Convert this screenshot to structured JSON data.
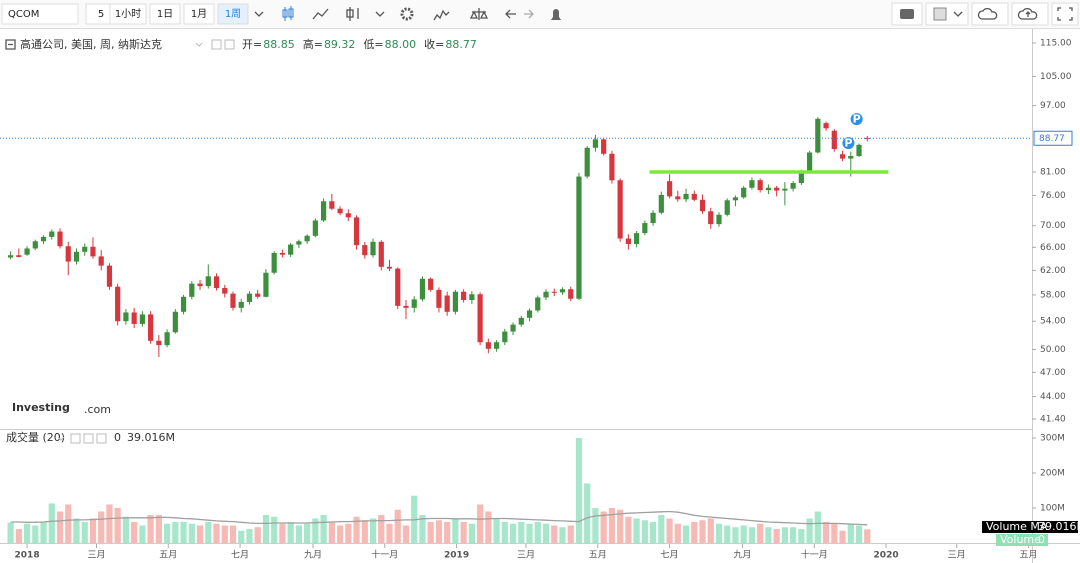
{
  "toolbar": {
    "symbol": "QCOM",
    "intervals": [
      "5",
      "1小时",
      "1日",
      "1月",
      "1周"
    ],
    "active": 4
  },
  "chart_data": {
    "type": "candlestick",
    "header": {
      "name": "高通公司, 美国, 周, 纳斯达克",
      "fields": [
        {
          "label": "开=",
          "value": "88.85"
        },
        {
          "label": "高=",
          "value": "89.32"
        },
        {
          "label": "低=",
          "value": "88.00"
        },
        {
          "label": "收=",
          "value": "88.77"
        }
      ]
    },
    "watermark": [
      "Investing",
      ".com"
    ],
    "log_scale": true,
    "up_color": "#3c8f3c",
    "down_color": "#d6363e",
    "ylim": [
      40.4,
      118.8
    ],
    "yticks": [
      {
        "value": 115,
        "label": "115.00"
      },
      {
        "value": 105,
        "label": "105.00"
      },
      {
        "value": 97,
        "label": "97.00"
      },
      {
        "value": 81,
        "label": "81.00"
      },
      {
        "value": 76,
        "label": "76.00"
      },
      {
        "value": 70,
        "label": "70.00"
      },
      {
        "value": 66,
        "label": "66.00"
      },
      {
        "value": 62,
        "label": "62.00"
      },
      {
        "value": 58,
        "label": "58.00"
      },
      {
        "value": 54,
        "label": "54.00"
      },
      {
        "value": 50,
        "label": "50.00"
      },
      {
        "value": 47,
        "label": "47.00"
      },
      {
        "value": 44,
        "label": "44.00"
      },
      {
        "value": 41.4,
        "label": "41.40"
      }
    ],
    "xlim": [
      "2017-12-09",
      "2020-05-04"
    ],
    "xticks": [
      {
        "value": "2018-01-01",
        "label": "2018"
      },
      {
        "value": "2018-03-01",
        "label": "三月"
      },
      {
        "value": "2018-05-01",
        "label": "五月"
      },
      {
        "value": "2018-07-01",
        "label": "七月"
      },
      {
        "value": "2018-09-01",
        "label": "九月"
      },
      {
        "value": "2018-11-01",
        "label": "十一月"
      },
      {
        "value": "2019-01-01",
        "label": "2019"
      },
      {
        "value": "2019-03-01",
        "label": "三月"
      },
      {
        "value": "2019-05-01",
        "label": "五月"
      },
      {
        "value": "2019-07-01",
        "label": "七月"
      },
      {
        "value": "2019-09-01",
        "label": "九月"
      },
      {
        "value": "2019-11-01",
        "label": "十一月"
      },
      {
        "value": "2020-01-01",
        "label": "2020"
      },
      {
        "value": "2020-03-01",
        "label": "三月"
      },
      {
        "value": "2020-05-01",
        "label": "五月"
      }
    ],
    "x": [
      "2017-12-18",
      "2017-12-25",
      "2018-01-01",
      "2018-01-08",
      "2018-01-15",
      "2018-01-22",
      "2018-01-29",
      "2018-02-05",
      "2018-02-12",
      "2018-02-19",
      "2018-02-26",
      "2018-03-05",
      "2018-03-12",
      "2018-03-19",
      "2018-03-26",
      "2018-04-02",
      "2018-04-09",
      "2018-04-16",
      "2018-04-23",
      "2018-04-30",
      "2018-05-07",
      "2018-05-14",
      "2018-05-21",
      "2018-05-28",
      "2018-06-04",
      "2018-06-11",
      "2018-06-18",
      "2018-06-25",
      "2018-07-02",
      "2018-07-09",
      "2018-07-16",
      "2018-07-23",
      "2018-07-30",
      "2018-08-06",
      "2018-08-13",
      "2018-08-20",
      "2018-08-27",
      "2018-09-03",
      "2018-09-10",
      "2018-09-17",
      "2018-09-24",
      "2018-10-01",
      "2018-10-08",
      "2018-10-15",
      "2018-10-22",
      "2018-10-29",
      "2018-11-05",
      "2018-11-12",
      "2018-11-19",
      "2018-11-26",
      "2018-12-03",
      "2018-12-10",
      "2018-12-17",
      "2018-12-24",
      "2018-12-31",
      "2019-01-07",
      "2019-01-14",
      "2019-01-21",
      "2019-01-28",
      "2019-02-04",
      "2019-02-11",
      "2019-02-18",
      "2019-02-25",
      "2019-03-04",
      "2019-03-11",
      "2019-03-18",
      "2019-03-25",
      "2019-04-01",
      "2019-04-08",
      "2019-04-15",
      "2019-04-22",
      "2019-04-29",
      "2019-05-06",
      "2019-05-13",
      "2019-05-20",
      "2019-05-27",
      "2019-06-03",
      "2019-06-10",
      "2019-06-17",
      "2019-06-24",
      "2019-07-01",
      "2019-07-08",
      "2019-07-15",
      "2019-07-22",
      "2019-07-29",
      "2019-08-05",
      "2019-08-12",
      "2019-08-19",
      "2019-08-26",
      "2019-09-02",
      "2019-09-09",
      "2019-09-16",
      "2019-09-23",
      "2019-09-30",
      "2019-10-07",
      "2019-10-14",
      "2019-10-21",
      "2019-10-28",
      "2019-11-04",
      "2019-11-11",
      "2019-11-18",
      "2019-11-25",
      "2019-12-02",
      "2019-12-09",
      "2019-12-16"
    ],
    "ohlc": [
      [
        64.2,
        65.3,
        63.9,
        64.6
      ],
      [
        64.6,
        65.8,
        64.2,
        64.3
      ],
      [
        64.7,
        66.2,
        64.5,
        65.8
      ],
      [
        65.8,
        67.4,
        65.5,
        67.1
      ],
      [
        67.1,
        68.2,
        66.6,
        67.9
      ],
      [
        67.9,
        69.3,
        67.4,
        68.9
      ],
      [
        68.9,
        69.5,
        65.8,
        66.2
      ],
      [
        66.2,
        67,
        61.2,
        63.5
      ],
      [
        63.5,
        65.8,
        63,
        65.2
      ],
      [
        65.2,
        66.7,
        64.5,
        66.1
      ],
      [
        66.1,
        67.8,
        64,
        64.4
      ],
      [
        64.4,
        65.5,
        62,
        62.8
      ],
      [
        62.8,
        63.2,
        58.8,
        59.3
      ],
      [
        59.3,
        59.8,
        53.4,
        54
      ],
      [
        54,
        55.8,
        53.5,
        55.3
      ],
      [
        55.3,
        56,
        53,
        53.6
      ],
      [
        53.6,
        55.5,
        53.2,
        55
      ],
      [
        55,
        55.5,
        50.8,
        51.2
      ],
      [
        51.2,
        52,
        49,
        50.6
      ],
      [
        50.6,
        52.8,
        50.3,
        52.4
      ],
      [
        52.4,
        55.8,
        52.2,
        55.4
      ],
      [
        55.4,
        58,
        55,
        57.7
      ],
      [
        57.7,
        60.2,
        57.3,
        59.8
      ],
      [
        59.8,
        60.4,
        58.8,
        59.4
      ],
      [
        59.4,
        63,
        59,
        61
      ],
      [
        61,
        61.5,
        58.7,
        59.1
      ],
      [
        59.1,
        59.6,
        57.6,
        58.2
      ],
      [
        58.2,
        58.5,
        55.6,
        56
      ],
      [
        56,
        57.4,
        55.3,
        56.9
      ],
      [
        56.9,
        58.6,
        56.5,
        58.2
      ],
      [
        58.2,
        58.8,
        57.4,
        57.7
      ],
      [
        57.7,
        62.2,
        57.6,
        61.6
      ],
      [
        61.6,
        65.3,
        61.3,
        65
      ],
      [
        65,
        65.6,
        64.2,
        64.7
      ],
      [
        64.7,
        66.8,
        64.3,
        66.5
      ],
      [
        66.5,
        67.4,
        65.9,
        67.1
      ],
      [
        67.1,
        68.4,
        66.6,
        68.1
      ],
      [
        68.1,
        71.4,
        67.8,
        71
      ],
      [
        71,
        75.4,
        70.7,
        74.8
      ],
      [
        74.8,
        76.3,
        73,
        73.3
      ],
      [
        73.3,
        73.8,
        72,
        72.4
      ],
      [
        72.4,
        73.2,
        70.9,
        71.6
      ],
      [
        71.6,
        72,
        65.6,
        66.4
      ],
      [
        66.4,
        67,
        64,
        64.6
      ],
      [
        64.6,
        67.6,
        64.2,
        67
      ],
      [
        67,
        67.3,
        62,
        62.6
      ],
      [
        62.6,
        63.8,
        61.9,
        62.3
      ],
      [
        62.3,
        62.5,
        55.8,
        56.3
      ],
      [
        56.3,
        57.2,
        54.3,
        56
      ],
      [
        56,
        57.8,
        55.3,
        57.3
      ],
      [
        57.3,
        61,
        57,
        60.6
      ],
      [
        60.6,
        60.8,
        58.5,
        58.8
      ],
      [
        58.8,
        59.2,
        55.3,
        56
      ],
      [
        57.9,
        58.5,
        54.8,
        55.4
      ],
      [
        55.4,
        58.8,
        55,
        58.5
      ],
      [
        58.5,
        58.9,
        56.8,
        57.2
      ],
      [
        57.2,
        58.6,
        56.6,
        58.1
      ],
      [
        58.1,
        58.4,
        50.6,
        51
      ],
      [
        51,
        51.5,
        49.5,
        50.1
      ],
      [
        50.1,
        51.3,
        49.7,
        51
      ],
      [
        51,
        52.9,
        50.6,
        52.5
      ],
      [
        52.5,
        53.8,
        52,
        53.5
      ],
      [
        53.5,
        54.8,
        53.2,
        54.5
      ],
      [
        54.5,
        55.9,
        54,
        55.6
      ],
      [
        55.6,
        57.9,
        55.3,
        57.6
      ],
      [
        57.6,
        58.9,
        57.2,
        58.5
      ],
      [
        58.5,
        59,
        57.8,
        58.4
      ],
      [
        58.4,
        59.2,
        58,
        58.9
      ],
      [
        58.9,
        59.3,
        57,
        57.4
      ],
      [
        57.4,
        80.8,
        57.2,
        80
      ],
      [
        80,
        86.9,
        79.6,
        86.5
      ],
      [
        86.5,
        89.6,
        85.6,
        88.5
      ],
      [
        88.5,
        88.8,
        84.7,
        85.1
      ],
      [
        85.1,
        85.8,
        78.5,
        79.2
      ],
      [
        79.2,
        79.6,
        67,
        67.6
      ],
      [
        67.6,
        68.4,
        65.6,
        66.6
      ],
      [
        66.6,
        69,
        66,
        68.6
      ],
      [
        68.6,
        71,
        68.2,
        70.5
      ],
      [
        70.5,
        73,
        70,
        72.5
      ],
      [
        72.5,
        76.8,
        72.2,
        76.1
      ],
      [
        79,
        80.5,
        75.4,
        75.8
      ],
      [
        75.8,
        77,
        74.7,
        75.2
      ],
      [
        75.2,
        77.4,
        74.6,
        76.3
      ],
      [
        76.3,
        77,
        74.8,
        75.1
      ],
      [
        75.1,
        76.2,
        72.3,
        72.8
      ],
      [
        72.8,
        73.5,
        69.4,
        70.3
      ],
      [
        70.3,
        72.6,
        69.8,
        72.1
      ],
      [
        72.1,
        75.4,
        71.8,
        75
      ],
      [
        75,
        76,
        73.8,
        75.6
      ],
      [
        75.6,
        78,
        75.3,
        77.6
      ],
      [
        77.6,
        79.8,
        77.2,
        79.2
      ],
      [
        79.2,
        79.6,
        76.6,
        77.1
      ],
      [
        77.1,
        78.3,
        76.3,
        77.6
      ],
      [
        77.6,
        78,
        75.8,
        77
      ],
      [
        77,
        78.8,
        74,
        77.4
      ],
      [
        77.4,
        79,
        76.8,
        78.6
      ],
      [
        78.6,
        81.5,
        78.2,
        81
      ],
      [
        81,
        85.8,
        80.8,
        85.4
      ],
      [
        85.4,
        94,
        85.2,
        93.6
      ],
      [
        92.5,
        92.9,
        90.6,
        91.2
      ],
      [
        90.6,
        91,
        85.6,
        86.2
      ],
      [
        85,
        85.8,
        83.4,
        84
      ],
      [
        84,
        85.6,
        80,
        84.6
      ],
      [
        84.6,
        87.5,
        84.3,
        87.2
      ],
      [
        88.85,
        89.32,
        88,
        88.77
      ]
    ],
    "price_line_color": "#2f7fd8",
    "drawings": [
      {
        "value": 81,
        "from": "2019-06-14",
        "to": "2020-01-03",
        "color": "#7ee83a"
      }
    ],
    "events": [
      {
        "label": "P",
        "date": "2019-12-07",
        "price": 93.5
      },
      {
        "label": "P",
        "date": "2019-11-30",
        "price": 87.6
      }
    ],
    "volume": {
      "title": "成交量 (20)",
      "header_values": [
        "0",
        "39.016M"
      ],
      "ma_label": "Volume MA",
      "volume_label": "Volume",
      "up_color": "#a6e6cb",
      "down_color": "#f6b9b4",
      "ma_color": "#a0a0a0",
      "ylim": [
        0,
        317
      ],
      "yticks": [
        {
          "value": 300,
          "label": "300M"
        },
        {
          "value": 200,
          "label": "200M"
        },
        {
          "value": 100,
          "label": "100M"
        }
      ],
      "values": [
        58,
        40,
        55,
        50,
        60,
        113,
        90,
        110,
        70,
        60,
        70,
        90,
        110,
        100,
        75,
        60,
        50,
        80,
        80,
        55,
        60,
        60,
        55,
        50,
        60,
        55,
        50,
        50,
        35,
        40,
        45,
        80,
        75,
        55,
        60,
        50,
        55,
        70,
        80,
        60,
        50,
        55,
        75,
        65,
        70,
        80,
        55,
        95,
        50,
        135,
        80,
        60,
        65,
        60,
        70,
        60,
        55,
        110,
        90,
        70,
        60,
        55,
        60,
        55,
        60,
        55,
        50,
        45,
        50,
        300,
        170,
        100,
        90,
        100,
        95,
        75,
        70,
        65,
        60,
        80,
        70,
        55,
        50,
        60,
        65,
        70,
        55,
        50,
        45,
        50,
        45,
        55,
        45,
        40,
        45,
        45,
        40,
        70,
        90,
        60,
        55,
        35,
        55,
        50,
        39.016
      ],
      "ma_values": [
        60,
        60,
        59,
        59,
        60,
        62,
        63,
        65,
        66,
        66,
        67,
        68,
        70,
        71,
        72,
        72,
        72,
        72,
        73,
        73,
        72,
        70,
        69,
        67,
        65,
        63,
        62,
        61,
        59,
        57,
        56,
        56,
        57,
        57,
        57,
        57,
        57,
        58,
        59,
        60,
        61,
        61,
        62,
        63,
        63,
        64,
        64,
        65,
        66,
        66,
        69,
        70,
        70,
        70,
        69,
        69,
        69,
        68,
        69,
        70,
        70,
        69,
        68,
        67,
        66,
        65,
        64,
        63,
        62,
        61,
        72,
        77,
        79,
        81,
        83,
        85,
        86,
        87,
        88,
        89,
        90,
        88,
        84,
        79,
        76,
        74,
        72,
        70,
        68,
        66,
        64,
        62,
        60,
        59,
        58,
        57,
        56,
        55,
        56,
        56,
        56,
        55,
        54,
        53,
        52
      ]
    }
  }
}
